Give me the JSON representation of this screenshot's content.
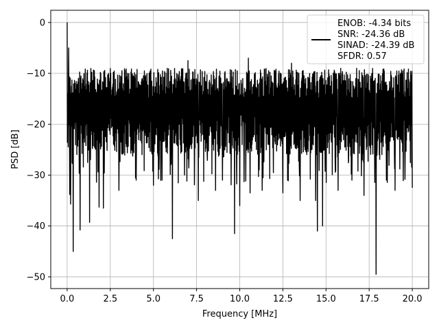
{
  "chart_data": {
    "type": "line",
    "xlabel": "Frequency [MHz]",
    "ylabel": "PSD [dB]",
    "xlim": [
      -0.95,
      20.95
    ],
    "ylim": [
      -52.3,
      2.4
    ],
    "xticks": [
      0.0,
      2.5,
      5.0,
      7.5,
      10.0,
      12.5,
      15.0,
      17.5,
      20.0
    ],
    "xtick_labels": [
      "0.0",
      "2.5",
      "5.0",
      "7.5",
      "10.0",
      "12.5",
      "15.0",
      "17.5",
      "20.0"
    ],
    "yticks": [
      0,
      -10,
      -20,
      -30,
      -40,
      -50
    ],
    "ytick_labels": [
      "0",
      "−10",
      "−20",
      "−30",
      "−40",
      "−50"
    ],
    "grid": true,
    "legend_position": "top-right",
    "legend_lines": [
      "ENOB: -4.34 bits",
      "SNR: -24.36 dB",
      "SINAD: -24.39 dB",
      "SFDR: 0.57"
    ],
    "series_color": "#000000",
    "series": [
      {
        "x_start": 0.0,
        "x_end": 20.0,
        "envelope_upper": -9.0,
        "envelope_lower": -26.0,
        "peaks": [
          {
            "x": 0.0,
            "y": 0.0
          },
          {
            "x": 0.08,
            "y": -5.0
          },
          {
            "x": 0.15,
            "y": -33.8
          },
          {
            "x": 0.2,
            "y": -35.7
          },
          {
            "x": 0.35,
            "y": -45.0
          },
          {
            "x": 0.75,
            "y": -40.8
          },
          {
            "x": 1.3,
            "y": -39.3
          },
          {
            "x": 1.85,
            "y": -36.3
          },
          {
            "x": 2.1,
            "y": -36.5
          },
          {
            "x": 3.0,
            "y": -33.0
          },
          {
            "x": 4.0,
            "y": -31.0
          },
          {
            "x": 5.0,
            "y": -32.0
          },
          {
            "x": 5.5,
            "y": -31.0
          },
          {
            "x": 6.1,
            "y": -42.5
          },
          {
            "x": 6.8,
            "y": -30.0
          },
          {
            "x": 7.6,
            "y": -35.0
          },
          {
            "x": 8.6,
            "y": -33.0
          },
          {
            "x": 9.0,
            "y": -31.0
          },
          {
            "x": 9.7,
            "y": -41.5
          },
          {
            "x": 10.0,
            "y": -36.0
          },
          {
            "x": 10.6,
            "y": -33.5
          },
          {
            "x": 11.3,
            "y": -33.0
          },
          {
            "x": 12.5,
            "y": -33.5
          },
          {
            "x": 13.5,
            "y": -35.0
          },
          {
            "x": 14.4,
            "y": -35.0
          },
          {
            "x": 14.5,
            "y": -41.0
          },
          {
            "x": 14.8,
            "y": -40.0
          },
          {
            "x": 15.7,
            "y": -33.0
          },
          {
            "x": 16.5,
            "y": -31.0
          },
          {
            "x": 17.2,
            "y": -34.0
          },
          {
            "x": 17.9,
            "y": -49.5
          },
          {
            "x": 18.5,
            "y": -31.0
          },
          {
            "x": 19.0,
            "y": -33.0
          },
          {
            "x": 20.0,
            "y": -32.5
          },
          {
            "x": 3.5,
            "y": -10.0
          },
          {
            "x": 7.0,
            "y": -7.5
          },
          {
            "x": 10.5,
            "y": -7.0
          },
          {
            "x": 13.0,
            "y": -8.0
          }
        ]
      }
    ]
  }
}
